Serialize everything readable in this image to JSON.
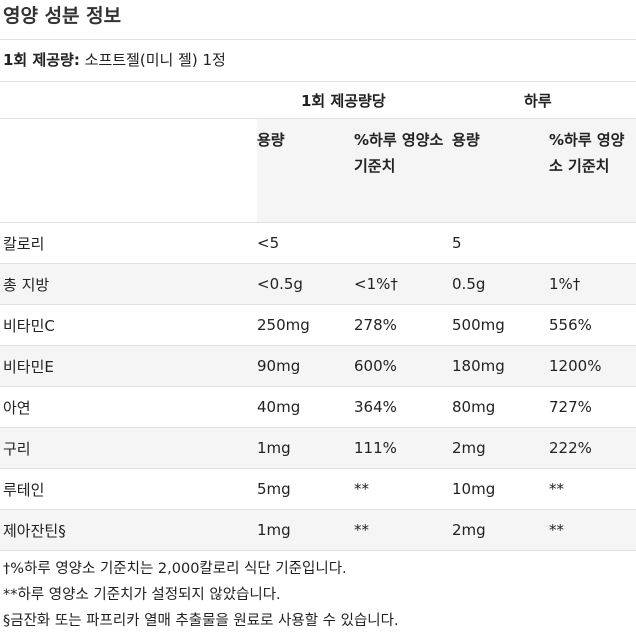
{
  "title": "영양 성분 정보",
  "serving": {
    "label": "1회 제공량:",
    "value": "소프트젤(미니 젤) 1정"
  },
  "group_headers": {
    "per_serving": "1회 제공량당",
    "per_day": "하루"
  },
  "sub_headers": {
    "amount_1": "용량",
    "dv_1": "%하루 영양소 기준치",
    "amount_2": "용량",
    "dv_2": "%하루 영양소 기준치"
  },
  "rows": [
    {
      "name": "칼로리",
      "amt1": "<5",
      "dv1": "",
      "amt2": "5",
      "dv2": ""
    },
    {
      "name": "총 지방",
      "amt1": "<0.5g",
      "dv1": "<1%†",
      "amt2": "0.5g",
      "dv2": "1%†"
    },
    {
      "name": "비타민C",
      "amt1": "250mg",
      "dv1": "278%",
      "amt2": "500mg",
      "dv2": "556%"
    },
    {
      "name": "비타민E",
      "amt1": "90mg",
      "dv1": "600%",
      "amt2": "180mg",
      "dv2": "1200%"
    },
    {
      "name": "아연",
      "amt1": "40mg",
      "dv1": "364%",
      "amt2": "80mg",
      "dv2": "727%"
    },
    {
      "name": "구리",
      "amt1": "1mg",
      "dv1": "111%",
      "amt2": "2mg",
      "dv2": "222%"
    },
    {
      "name": "루테인",
      "amt1": "5mg",
      "dv1": "**",
      "amt2": "10mg",
      "dv2": "**"
    },
    {
      "name": "제아잔틴§",
      "amt1": "1mg",
      "dv1": "**",
      "amt2": "2mg",
      "dv2": "**"
    }
  ],
  "footnotes": [
    "†%하루 영양소 기준치는 2,000칼로리 식단 기준입니다.",
    "**하루 영양소 기준치가 설정되지 않았습니다.",
    "§금잔화 또는 파프리카 열매 추출물을 원료로 사용할 수 있습니다."
  ]
}
